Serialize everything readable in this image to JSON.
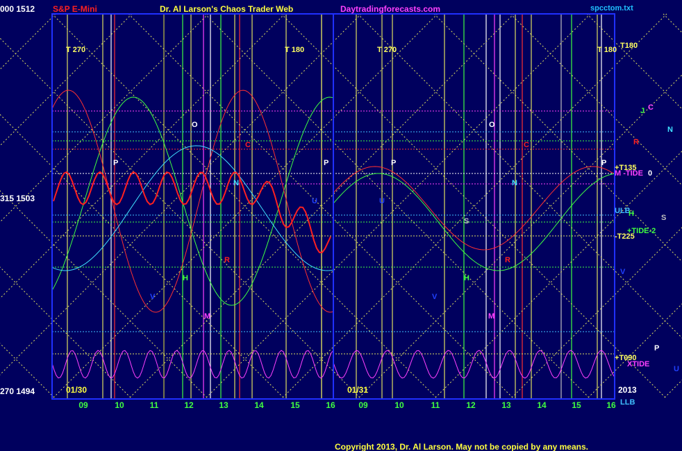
{
  "header": {
    "price_label": "000 1512",
    "symbol": "S&P E-Mini",
    "title": "Dr. Al Larson's Chaos Trader Web",
    "site": "Daytradingforecasts.com",
    "file": "spcctom.txt"
  },
  "left_labels": [
    "315 1503",
    "270 1494"
  ],
  "dates": [
    "01/30",
    "01/31",
    "2013"
  ],
  "hours": [
    "09",
    "10",
    "11",
    "12",
    "13",
    "14",
    "15",
    "16",
    "09",
    "10",
    "11",
    "12",
    "13",
    "14",
    "15",
    "16"
  ],
  "cycle_labels": [
    "T   270",
    "T   180",
    "T   270",
    "T   180"
  ],
  "right_labels": [
    "T180",
    "J",
    "C",
    "N",
    "R",
    "+T135",
    "M  -TIDE",
    "0",
    "ULB",
    "H",
    "S",
    "+TIDE-2",
    "-T225",
    "V",
    "+T090",
    "XTIDE",
    "P",
    "U",
    "LLB"
  ],
  "plot_letters": [
    "P",
    "O",
    "C",
    "N",
    "P",
    "U",
    "R",
    "H",
    "V",
    "M",
    "P",
    "O",
    "C",
    "N",
    "P",
    "U",
    "S",
    "R",
    "H",
    "V",
    "M"
  ],
  "footer": "Copyright 2013, Dr. Al Larson. May not be copied by any means."
}
